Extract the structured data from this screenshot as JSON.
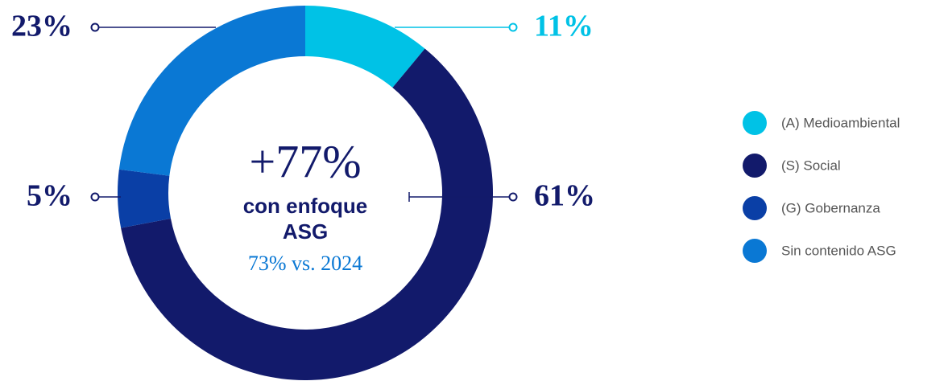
{
  "chart_data": {
    "type": "donut",
    "categories": [
      "(A) Medioambiental",
      "(S) Social",
      "(G) Gobernanza",
      "Sin contenido ASG"
    ],
    "values": [
      11,
      61,
      5,
      23
    ],
    "value_labels": [
      "11%",
      "61%",
      "5%",
      "23%"
    ],
    "colors": [
      "#00c2e6",
      "#121a6b",
      "#0a3fa6",
      "#0a78d4"
    ],
    "label_colors": [
      "#00c2e6",
      "#121a6b",
      "#121a6b",
      "#121a6b"
    ],
    "center": {
      "headline": "+77%",
      "text": [
        "con enfoque",
        "ASG"
      ],
      "comparison": "73% vs. 2024"
    },
    "legend": "right"
  }
}
